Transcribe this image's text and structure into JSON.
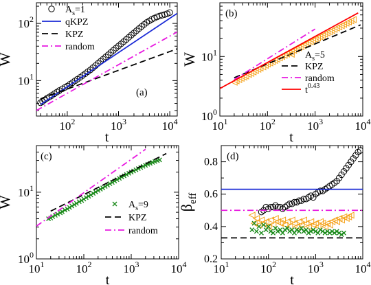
{
  "chart_data": [
    {
      "panel": "a",
      "label": "(a)",
      "type": "line",
      "xlabel": "t",
      "ylabel": "W",
      "xscale": "log",
      "yscale": "log",
      "xlim": [
        25,
        14000
      ],
      "ylim": [
        2.4,
        230
      ],
      "x_ticks": [
        {
          "v": 100,
          "b": "10",
          "e": "2"
        },
        {
          "v": 1000,
          "b": "10",
          "e": "3"
        },
        {
          "v": 10000,
          "b": "10",
          "e": "4"
        }
      ],
      "y_ticks": [
        {
          "v": 10,
          "b": "10",
          "e": "1"
        },
        {
          "v": 100,
          "b": "10",
          "e": "2"
        }
      ],
      "legend_position": "top-left",
      "series": [
        {
          "name": "A",
          "sub": "s",
          "name_suffix": "=1",
          "style": "circles",
          "color": "#000000",
          "x": [
            30,
            33,
            36,
            40,
            45,
            50,
            56,
            63,
            70,
            80,
            90,
            100,
            112,
            126,
            141,
            158,
            178,
            200,
            224,
            251,
            282,
            316,
            355,
            398,
            447,
            501,
            562,
            631,
            708,
            794,
            891,
            1000,
            1122,
            1259,
            1413,
            1585,
            1778,
            1995,
            2239,
            2512,
            2818,
            3162,
            3548,
            3981,
            4467,
            5012,
            5623,
            6310,
            7079,
            7943,
            8913,
            10000
          ],
          "y": [
            4.1,
            4.3,
            4.6,
            4.9,
            5.2,
            5.5,
            5.9,
            6.3,
            6.7,
            7.2,
            7.6,
            8.0,
            8.6,
            9.2,
            9.9,
            10.6,
            11.4,
            12.3,
            13.2,
            14.3,
            15.4,
            16.8,
            18.3,
            20.0,
            21.8,
            23.8,
            26.0,
            28.4,
            31.0,
            33.9,
            37.0,
            40.4,
            44.0,
            48.0,
            52.4,
            57.2,
            62.5,
            68.3,
            74.5,
            81.3,
            88.5,
            96.0,
            104,
            111,
            118,
            124,
            130,
            135,
            139,
            143,
            148,
            155
          ]
        },
        {
          "name": "qKPZ",
          "style": "solid",
          "color": "#1a2ad6",
          "x": [
            30,
            14000
          ],
          "y": [
            3.8,
            150
          ]
        },
        {
          "name": "KPZ",
          "style": "dashed",
          "color": "#000000",
          "x": [
            30,
            14000
          ],
          "y": [
            4.8,
            36
          ]
        },
        {
          "name": "random",
          "style": "dashdot",
          "color": "#e81ae0",
          "x": [
            25,
            14000
          ],
          "y": [
            3.0,
            71
          ]
        }
      ]
    },
    {
      "panel": "b",
      "label": "(b)",
      "type": "line",
      "xlabel": "t",
      "ylabel": "W",
      "xscale": "log",
      "yscale": "log",
      "xlim": [
        10,
        10000
      ],
      "ylim": [
        1,
        80
      ],
      "x_ticks": [
        {
          "v": 10,
          "b": "10",
          "e": "1"
        },
        {
          "v": 100,
          "b": "10",
          "e": "2"
        },
        {
          "v": 1000,
          "b": "10",
          "e": "3"
        },
        {
          "v": 10000,
          "b": "10",
          "e": "4"
        }
      ],
      "y_ticks": [
        {
          "v": 1,
          "b": "10",
          "e": "0"
        },
        {
          "v": 10,
          "b": "10",
          "e": "1"
        }
      ],
      "legend_position": "bottom-right",
      "series": [
        {
          "name": "A",
          "sub": "s",
          "name_suffix": "=5",
          "style": "triangles",
          "color": "#f5a21a",
          "x": [
            20,
            22,
            25,
            28,
            32,
            35,
            40,
            45,
            50,
            56,
            63,
            70,
            80,
            90,
            100,
            112,
            126,
            141,
            158,
            178,
            200,
            224,
            251,
            282,
            316,
            355,
            398,
            447,
            501,
            562,
            631,
            708,
            794,
            891,
            1000,
            1122,
            1259,
            1413,
            1585,
            1778,
            1995,
            2239,
            2512,
            2818,
            3162,
            3548,
            3981,
            4467,
            5012,
            5623,
            6310
          ],
          "y": [
            3.7,
            3.9,
            4.1,
            4.3,
            4.5,
            4.7,
            5.0,
            5.2,
            5.5,
            5.8,
            6.1,
            6.4,
            6.7,
            7.1,
            7.5,
            7.8,
            8.2,
            8.6,
            9.0,
            9.5,
            10.0,
            10.5,
            11.0,
            11.5,
            12.1,
            12.7,
            13.3,
            14.0,
            14.6,
            15.3,
            16.1,
            16.9,
            17.7,
            18.6,
            19.5,
            20.5,
            21.5,
            22.6,
            23.7,
            24.9,
            26.1,
            27.3,
            28.6,
            30.0,
            31.5,
            33.0,
            34.6,
            36.3,
            38.0,
            39.8,
            41.7
          ]
        },
        {
          "name": "KPZ",
          "style": "dashed",
          "color": "#000000",
          "x": [
            20,
            9000
          ],
          "y": [
            4.4,
            34
          ]
        },
        {
          "name": "random",
          "style": "dashdot",
          "color": "#e81ae0",
          "x": [
            20,
            1000
          ],
          "y": [
            4.1,
            29
          ]
        },
        {
          "name": "t",
          "sup": "0.43",
          "style": "solid",
          "color": "#ff0000",
          "x": [
            10,
            8000
          ],
          "y": [
            2.9,
            54
          ]
        }
      ]
    },
    {
      "panel": "c",
      "label": "(c)",
      "type": "line",
      "xlabel": "t",
      "ylabel": "W",
      "xscale": "log",
      "yscale": "log",
      "xlim": [
        10,
        10000
      ],
      "ylim": [
        1,
        50
      ],
      "x_ticks": [
        {
          "v": 10,
          "b": "10",
          "e": "1"
        },
        {
          "v": 100,
          "b": "10",
          "e": "2"
        },
        {
          "v": 1000,
          "b": "10",
          "e": "3"
        },
        {
          "v": 10000,
          "b": "10",
          "e": "4"
        }
      ],
      "y_ticks": [
        {
          "v": 1,
          "b": "10",
          "e": "0"
        },
        {
          "v": 10,
          "b": "10",
          "e": "1"
        }
      ],
      "legend_position": "bottom-right",
      "series": [
        {
          "name": "A",
          "sub": "s",
          "name_suffix": "=9",
          "style": "crosses",
          "color": "#1a8a1a",
          "x": [
            18,
            20,
            22,
            25,
            28,
            32,
            35,
            40,
            45,
            50,
            56,
            63,
            70,
            80,
            90,
            100,
            112,
            126,
            141,
            158,
            178,
            200,
            224,
            251,
            282,
            316,
            355,
            398,
            447,
            501,
            562,
            631,
            708,
            794,
            891,
            1000,
            1122,
            1259,
            1413,
            1585,
            1778,
            1995,
            2239,
            2512,
            2818,
            3162,
            3548,
            3981
          ],
          "y": [
            4.0,
            4.1,
            4.3,
            4.5,
            4.7,
            4.9,
            5.1,
            5.4,
            5.6,
            5.9,
            6.2,
            6.5,
            6.8,
            7.2,
            7.5,
            7.9,
            8.3,
            8.7,
            9.1,
            9.6,
            10.1,
            10.6,
            11.1,
            11.6,
            12.2,
            12.8,
            13.4,
            14.0,
            14.7,
            15.4,
            16.1,
            16.9,
            17.6,
            18.4,
            19.2,
            20.0,
            20.8,
            21.7,
            22.6,
            23.5,
            24.4,
            25.3,
            26.2,
            27.1,
            28.0,
            28.9,
            29.8,
            30.5
          ]
        },
        {
          "name": "KPZ",
          "style": "dashed",
          "color": "#000000",
          "x": [
            20,
            5500
          ],
          "y": [
            5.2,
            38
          ]
        },
        {
          "name": "random",
          "style": "dashdot",
          "color": "#e81ae0",
          "x": [
            10,
            2000
          ],
          "y": [
            3.1,
            44
          ]
        }
      ]
    },
    {
      "panel": "d",
      "label": "(d)",
      "type": "scatter",
      "xlabel": "t",
      "ylabel": "β",
      "ylabel_sub": "eff",
      "xscale": "log",
      "yscale": "linear",
      "xlim": [
        10,
        10000
      ],
      "ylim": [
        0.2,
        0.9
      ],
      "x_ticks": [
        {
          "v": 10,
          "b": "10",
          "e": "1"
        },
        {
          "v": 100,
          "b": "10",
          "e": "2"
        },
        {
          "v": 1000,
          "b": "10",
          "e": "3"
        },
        {
          "v": 10000,
          "b": "10",
          "e": "4"
        }
      ],
      "y_ticks": [
        {
          "v": 0.2,
          "t": "0.2"
        },
        {
          "v": 0.4,
          "t": "0.4"
        },
        {
          "v": 0.6,
          "t": "0.6"
        },
        {
          "v": 0.8,
          "t": "0.8"
        }
      ],
      "series": [
        {
          "name": "A_s=1",
          "style": "circles",
          "color": "#000000",
          "x": [
            71,
            79,
            89,
            100,
            112,
            126,
            141,
            158,
            178,
            200,
            224,
            251,
            282,
            316,
            355,
            398,
            447,
            501,
            562,
            631,
            708,
            794,
            891,
            1000,
            1122,
            1259,
            1413,
            1585,
            1778,
            1995,
            2239,
            2512,
            2818,
            3162,
            3548,
            3981,
            4467,
            5012,
            5623,
            6310,
            7079,
            7943,
            8913
          ],
          "y": [
            0.49,
            0.5,
            0.52,
            0.51,
            0.52,
            0.52,
            0.53,
            0.52,
            0.52,
            0.51,
            0.52,
            0.53,
            0.54,
            0.54,
            0.55,
            0.55,
            0.56,
            0.56,
            0.57,
            0.57,
            0.58,
            0.59,
            0.58,
            0.6,
            0.61,
            0.62,
            0.62,
            0.63,
            0.64,
            0.65,
            0.66,
            0.67,
            0.68,
            0.7,
            0.72,
            0.74,
            0.76,
            0.78,
            0.8,
            0.82,
            0.84,
            0.86,
            0.87
          ]
        },
        {
          "name": "A_s=5",
          "style": "triangles",
          "color": "#f5a21a",
          "x": [
            45,
            50,
            56,
            63,
            71,
            79,
            89,
            100,
            112,
            126,
            141,
            158,
            178,
            200,
            224,
            251,
            282,
            316,
            355,
            398,
            447,
            501,
            562,
            631,
            708,
            794,
            891,
            1000,
            1122,
            1259,
            1413,
            1585,
            1778,
            1995,
            2239,
            2512,
            2818,
            3162,
            3548,
            3981,
            4467,
            5012,
            5623
          ],
          "y": [
            0.47,
            0.42,
            0.45,
            0.41,
            0.44,
            0.42,
            0.43,
            0.4,
            0.44,
            0.41,
            0.45,
            0.43,
            0.42,
            0.44,
            0.41,
            0.43,
            0.4,
            0.44,
            0.42,
            0.4,
            0.43,
            0.41,
            0.44,
            0.42,
            0.4,
            0.43,
            0.41,
            0.42,
            0.4,
            0.43,
            0.42,
            0.4,
            0.42,
            0.41,
            0.43,
            0.44,
            0.43,
            0.45,
            0.44,
            0.46,
            0.45,
            0.46,
            0.47
          ]
        },
        {
          "name": "A_s=9",
          "style": "crosses",
          "color": "#1a8a1a",
          "x": [
            45,
            50,
            56,
            63,
            71,
            79,
            89,
            100,
            112,
            126,
            141,
            158,
            178,
            200,
            224,
            251,
            282,
            316,
            355,
            398,
            447,
            501,
            562,
            631,
            708,
            794,
            891,
            1000,
            1122,
            1259,
            1413,
            1585,
            1778,
            1995,
            2239,
            2512,
            2818,
            3162,
            3548,
            3981
          ],
          "y": [
            0.38,
            0.42,
            0.37,
            0.4,
            0.36,
            0.41,
            0.38,
            0.4,
            0.37,
            0.36,
            0.39,
            0.37,
            0.38,
            0.36,
            0.38,
            0.39,
            0.37,
            0.38,
            0.36,
            0.38,
            0.37,
            0.39,
            0.37,
            0.38,
            0.36,
            0.37,
            0.38,
            0.37,
            0.36,
            0.38,
            0.37,
            0.36,
            0.37,
            0.36,
            0.37,
            0.36,
            0.37,
            0.36,
            0.35,
            0.36
          ]
        },
        {
          "name": "qKPZ",
          "style": "hline",
          "color": "#1a2ad6",
          "y": 0.63
        },
        {
          "name": "random",
          "style": "hline-dashdot",
          "color": "#e81ae0",
          "y": 0.5
        },
        {
          "name": "KPZ",
          "style": "hline-dashed",
          "color": "#000000",
          "y": 0.33
        }
      ]
    }
  ]
}
